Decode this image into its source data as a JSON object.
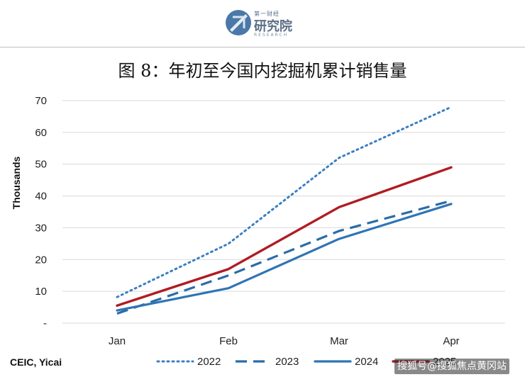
{
  "header": {
    "logo_top": "第一财经",
    "logo_main": "研究院",
    "logo_sub": "RESEARCH"
  },
  "title": "图 8：年初至今国内挖掘机累计销售量",
  "source": "CEIC, Yicai",
  "watermark": "搜狐号@搜狐焦点黄冈站",
  "colors": {
    "s2022": "#3a7fc1",
    "s2023": "#2a6ca8",
    "s2024": "#2f74b5",
    "s2025": "#b01c22",
    "grid": "#d9d9d9"
  },
  "chart_data": {
    "type": "line",
    "ylabel": "Thousands",
    "xlabel": "",
    "categories": [
      "Jan",
      "Feb",
      "Mar",
      "Apr"
    ],
    "ylim": [
      0,
      70
    ],
    "y_ticks": [
      {
        "value": 0,
        "label": "-"
      },
      {
        "value": 10,
        "label": "10"
      },
      {
        "value": 20,
        "label": "20"
      },
      {
        "value": 30,
        "label": "30"
      },
      {
        "value": 40,
        "label": "40"
      },
      {
        "value": 50,
        "label": "50"
      },
      {
        "value": 60,
        "label": "60"
      },
      {
        "value": 70,
        "label": "70"
      }
    ],
    "grid": true,
    "legend_position": "bottom",
    "series": [
      {
        "name": "2022",
        "style": "dotted",
        "values": [
          8.2,
          25.0,
          52.0,
          68.0
        ]
      },
      {
        "name": "2023",
        "style": "dashed",
        "values": [
          3.0,
          15.0,
          29.0,
          38.5
        ]
      },
      {
        "name": "2024",
        "style": "solid",
        "values": [
          4.0,
          11.0,
          26.5,
          37.5
        ]
      },
      {
        "name": "2025",
        "style": "solid",
        "values": [
          5.5,
          17.0,
          36.5,
          49.0
        ]
      }
    ]
  }
}
